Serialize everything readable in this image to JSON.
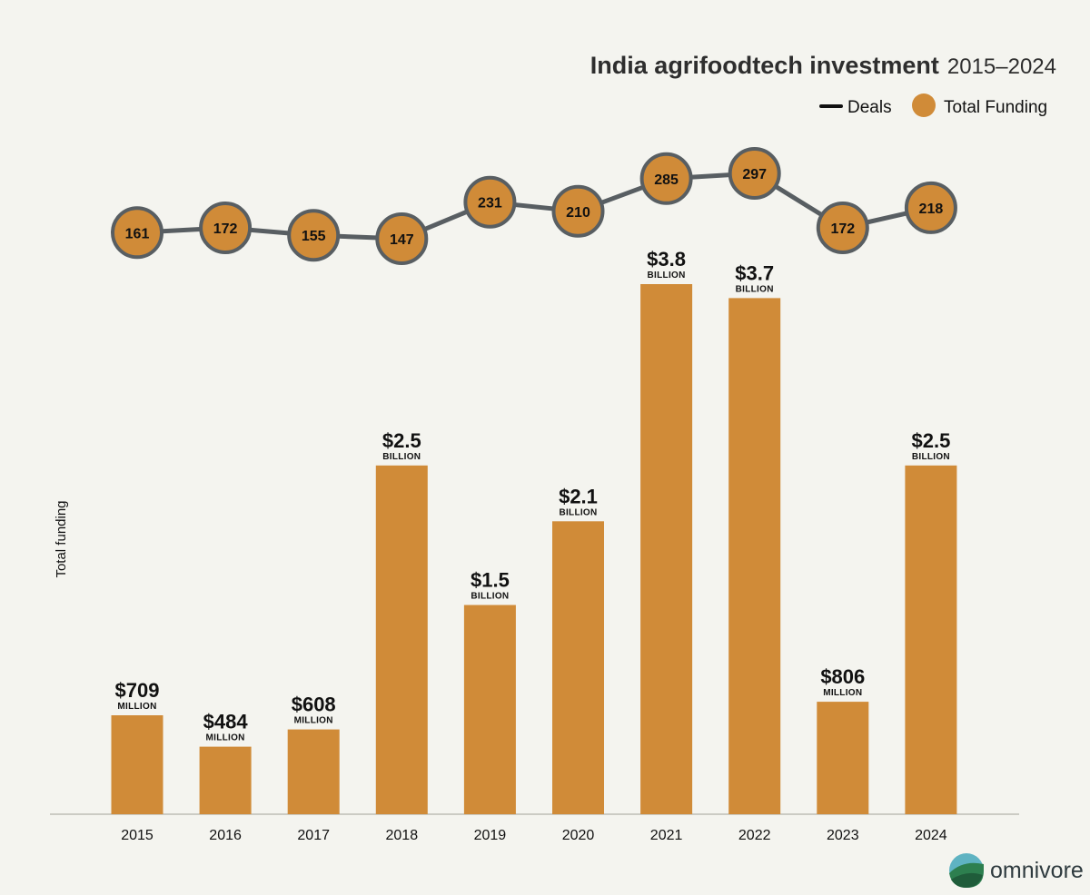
{
  "chart_data": {
    "type": "bar",
    "title": "India agrifoodtech investment",
    "subtitle": "2015–2024",
    "xlabel": "",
    "ylabel": "Total funding",
    "categories": [
      "2015",
      "2016",
      "2017",
      "2018",
      "2019",
      "2020",
      "2021",
      "2022",
      "2023",
      "2024"
    ],
    "series": [
      {
        "name": "Total Funding",
        "type": "bar",
        "unit": "USD billion",
        "values": [
          0.709,
          0.484,
          0.608,
          2.5,
          1.5,
          2.1,
          3.8,
          3.7,
          0.806,
          2.5
        ],
        "labels": [
          {
            "amount": "$709",
            "unit": "MILLION"
          },
          {
            "amount": "$484",
            "unit": "MILLION"
          },
          {
            "amount": "$608",
            "unit": "MILLION"
          },
          {
            "amount": "$2.5",
            "unit": "BILLION"
          },
          {
            "amount": "$1.5",
            "unit": "BILLION"
          },
          {
            "amount": "$2.1",
            "unit": "BILLION"
          },
          {
            "amount": "$3.8",
            "unit": "BILLION"
          },
          {
            "amount": "$3.7",
            "unit": "BILLION"
          },
          {
            "amount": "$806",
            "unit": "MILLION"
          },
          {
            "amount": "$2.5",
            "unit": "BILLION"
          }
        ]
      },
      {
        "name": "Deals",
        "type": "line",
        "values": [
          161,
          172,
          155,
          147,
          231,
          210,
          285,
          297,
          172,
          218
        ]
      }
    ],
    "legend": [
      {
        "name": "Deals",
        "marker": "line"
      },
      {
        "name": "Total Funding",
        "marker": "circle"
      }
    ],
    "legend_position": "top-right",
    "ylim_funding": [
      0,
      3.8
    ],
    "ylim_deals": [
      147,
      297
    ],
    "grid": false
  },
  "brand": {
    "logo_text": "omnivore"
  },
  "colors": {
    "background": "#f4f4ef",
    "bar": "#d08b38",
    "line": "#585e62",
    "marker_fill": "#d08b38",
    "marker_stroke": "#585e62",
    "text": "#111111",
    "baseline": "#bdbdb6"
  }
}
